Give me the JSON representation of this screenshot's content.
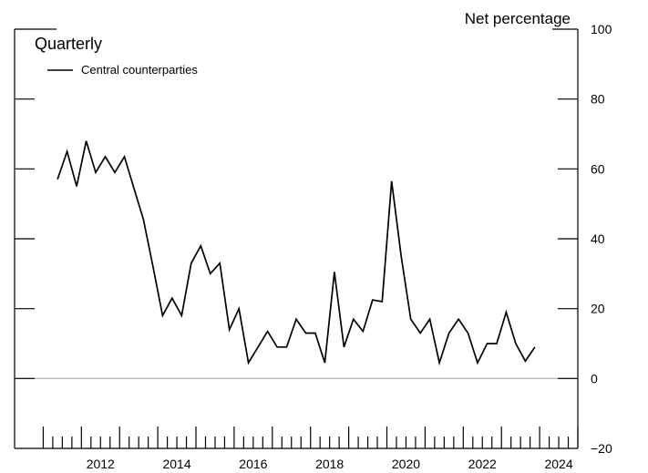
{
  "chart_data": {
    "type": "line",
    "frequency_label": "Quarterly",
    "y_unit_label": "Net percentage",
    "ylim": [
      -20,
      100
    ],
    "y_ticks": [
      -20,
      0,
      20,
      40,
      60,
      80,
      100
    ],
    "y_tick_labels": [
      "−20",
      "0",
      "20",
      "40",
      "60",
      "80",
      "100"
    ],
    "x_tick_labels": [
      "2012",
      "2014",
      "2016",
      "2018",
      "2020",
      "2022",
      "2024"
    ],
    "x_tick_years": [
      2012,
      2014,
      2016,
      2018,
      2020,
      2022,
      2024
    ],
    "x_range_years": [
      2010.25,
      2025.0
    ],
    "zero_line": true,
    "legend_position": "top-left",
    "colors": {
      "line": "#000000",
      "zero_line": "#b5b5b5",
      "axis": "#000000"
    },
    "series": [
      {
        "name": "Central counterparties",
        "x": [
          "2011 Q2",
          "2011 Q3",
          "2011 Q4",
          "2012 Q1",
          "2012 Q2",
          "2012 Q3",
          "2012 Q4",
          "2013 Q1",
          "2013 Q2",
          "2013 Q3",
          "2013 Q4",
          "2014 Q1",
          "2014 Q2",
          "2014 Q3",
          "2014 Q4",
          "2015 Q1",
          "2015 Q2",
          "2015 Q3",
          "2015 Q4",
          "2016 Q1",
          "2016 Q2",
          "2016 Q3",
          "2016 Q4",
          "2017 Q1",
          "2017 Q2",
          "2017 Q3",
          "2017 Q4",
          "2018 Q1",
          "2018 Q2",
          "2018 Q3",
          "2018 Q4",
          "2019 Q1",
          "2019 Q2",
          "2019 Q3",
          "2019 Q4",
          "2020 Q1",
          "2020 Q2",
          "2020 Q3",
          "2020 Q4",
          "2021 Q1",
          "2021 Q2",
          "2021 Q3",
          "2021 Q4",
          "2022 Q1",
          "2022 Q2",
          "2022 Q3",
          "2022 Q4",
          "2023 Q1",
          "2023 Q2",
          "2023 Q3",
          "2023 Q4"
        ],
        "values": [
          57,
          65,
          55,
          68,
          59,
          63.5,
          59,
          63.5,
          54.5,
          45.5,
          32,
          18,
          23,
          18,
          33,
          38,
          30,
          33,
          14,
          20,
          4.5,
          9,
          13.5,
          9,
          9,
          17,
          13,
          13,
          4.5,
          30.5,
          9,
          17,
          13.5,
          22.5,
          22,
          56.5,
          35,
          17,
          13,
          17,
          4.5,
          13,
          17,
          13,
          4.5,
          10,
          10,
          19,
          10,
          5,
          9
        ]
      }
    ]
  }
}
